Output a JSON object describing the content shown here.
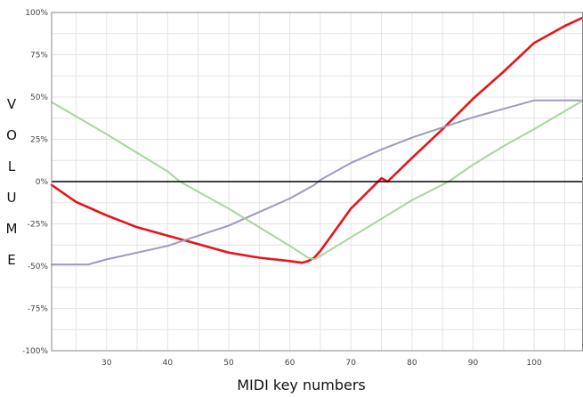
{
  "chart_data": {
    "type": "line",
    "title": "",
    "xlabel": "MIDI key numbers",
    "ylabel": "VOLUME",
    "xlim": [
      21,
      108
    ],
    "ylim": [
      -100,
      100
    ],
    "x_ticks": [
      30,
      40,
      50,
      60,
      70,
      80,
      90,
      100
    ],
    "y_ticks": [
      100,
      75,
      50,
      25,
      0,
      -25,
      -50,
      -75,
      -100
    ],
    "y_tick_labels": [
      "100%",
      "75%",
      "50%",
      "25%",
      "0%",
      "-25%",
      "-50%",
      "-75%",
      "-100%"
    ],
    "grid": true,
    "legend": "none",
    "zero_line_color": "#000000",
    "series": [
      {
        "color": "#e8141a",
        "x": [
          21,
          25,
          30,
          35,
          40,
          45,
          50,
          55,
          60,
          62,
          63,
          64,
          65,
          67,
          70,
          75,
          76,
          80,
          85,
          90,
          95,
          100,
          105,
          108
        ],
        "y": [
          -2,
          -12,
          -20,
          -27,
          -32,
          -37,
          -42,
          -45,
          -47,
          -48,
          -47,
          -45,
          -41,
          -31,
          -16,
          2,
          0,
          14,
          31,
          49,
          65,
          82,
          92,
          97
        ]
      },
      {
        "color": "#9b9bc2",
        "x": [
          21,
          27,
          30,
          35,
          40,
          45,
          50,
          55,
          60,
          64,
          65,
          70,
          75,
          80,
          85,
          90,
          95,
          100,
          105,
          108
        ],
        "y": [
          -49,
          -49,
          -46,
          -42,
          -38,
          -32,
          -26,
          -18,
          -10,
          -2,
          1,
          11,
          19,
          26,
          32,
          38,
          43,
          48,
          48,
          48
        ]
      },
      {
        "color": "#a6d79b",
        "x": [
          21,
          30,
          40,
          42,
          50,
          60,
          63,
          64,
          65,
          70,
          75,
          80,
          86,
          90,
          95,
          100,
          108
        ],
        "y": [
          47,
          28,
          6,
          0,
          -16,
          -38,
          -45,
          -46,
          -44,
          -33,
          -22,
          -11,
          0,
          10,
          21,
          31,
          48
        ]
      }
    ]
  }
}
